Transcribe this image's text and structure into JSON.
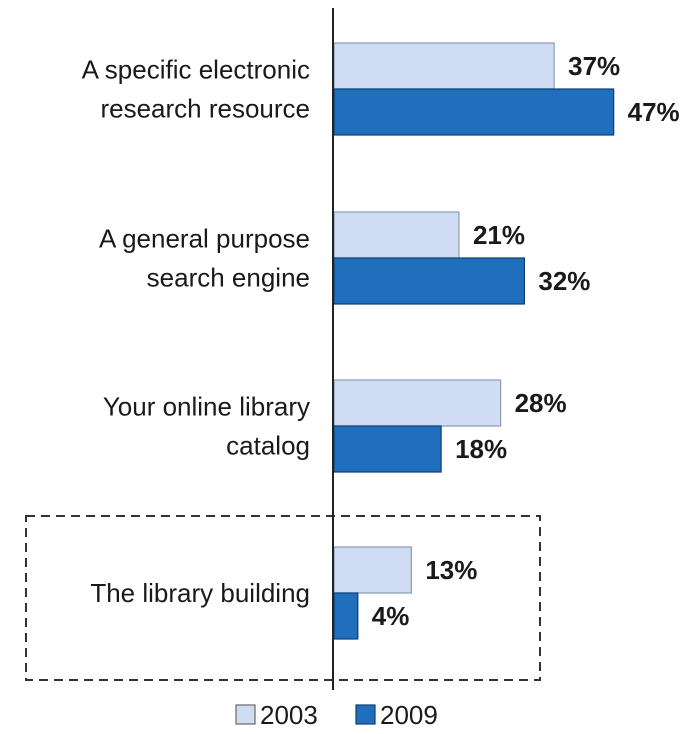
{
  "chart_data": {
    "type": "bar",
    "orientation": "horizontal",
    "categories": [
      [
        "A specific electronic",
        "research resource"
      ],
      [
        "A general purpose",
        "search engine"
      ],
      [
        "Your online library",
        "catalog"
      ],
      [
        "The library building"
      ]
    ],
    "series": [
      {
        "name": "2003",
        "values": [
          37,
          21,
          28,
          13
        ],
        "labels": [
          "37%",
          "21%",
          "28%",
          "13%"
        ],
        "color": "#cfdcf3"
      },
      {
        "name": "2009",
        "values": [
          47,
          32,
          18,
          4
        ],
        "labels": [
          "47%",
          "32%",
          "18%",
          "4%"
        ],
        "color": "#1f6fbc"
      }
    ],
    "xlim": [
      0,
      50
    ],
    "grid": false,
    "legend": "bottom-center",
    "highlighted_category_index": 3,
    "highlight_style": "dashed-box"
  }
}
